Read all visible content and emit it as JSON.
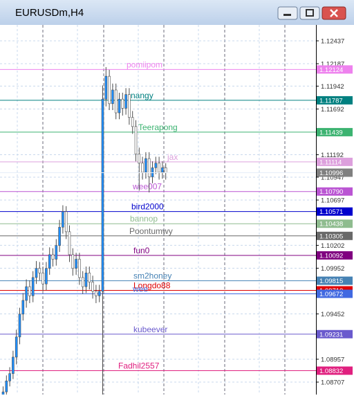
{
  "chart_data": {
    "type": "candlestick",
    "title": "EURUSDm,H4",
    "open": [
      1.0855,
      1.086,
      1.0872,
      1.088,
      1.0898,
      1.092,
      1.0945,
      1.096,
      1.0975,
      1.0965,
      1.0985,
      1.0995,
      1.099,
      1.0978,
      1.0995,
      1.101,
      1.1005,
      1.102,
      1.104,
      1.1057,
      1.1035,
      1.101,
      1.0995,
      1.1005,
      1.0985,
      1.0975,
      1.099,
      1.098,
      1.097,
      1.0965,
      1.097,
      1.118,
      1.1205,
      1.1175,
      1.119,
      1.1165,
      1.118,
      1.117,
      1.1185,
      1.116,
      1.115,
      1.112,
      1.111,
      1.11,
      1.1115,
      1.1095,
      1.1105,
      1.111,
      1.11,
      1.1105
    ],
    "high": [
      1.0866,
      1.0878,
      1.0887,
      1.0905,
      1.0928,
      1.0952,
      1.0968,
      1.0983,
      1.0982,
      1.0992,
      1.1003,
      1.1002,
      1.0997,
      1.1002,
      1.1018,
      1.1017,
      1.1027,
      1.1048,
      1.1064,
      1.1063,
      1.1042,
      1.1017,
      1.1012,
      1.1012,
      1.0992,
      1.0997,
      1.0997,
      1.0987,
      1.0977,
      1.0977,
      1.1195,
      1.1215,
      1.1212,
      1.1197,
      1.1197,
      1.1187,
      1.1187,
      1.1192,
      1.1192,
      1.1167,
      1.1157,
      1.1127,
      1.1117,
      1.1122,
      1.1122,
      1.1112,
      1.1117,
      1.1117,
      1.1112,
      1.111
    ],
    "low": [
      1.0849,
      1.0854,
      1.0866,
      1.0874,
      1.089,
      1.0912,
      1.0938,
      1.0952,
      1.0957,
      1.0958,
      1.0978,
      1.0982,
      1.097,
      1.0971,
      1.0988,
      1.0997,
      1.0998,
      1.1013,
      1.1033,
      1.1027,
      1.1002,
      1.0987,
      1.0988,
      1.0977,
      1.0967,
      1.0968,
      1.0972,
      1.0962,
      1.0957,
      1.0958,
      1.0857,
      1.1172,
      1.1168,
      1.1168,
      1.1158,
      1.1158,
      1.1162,
      1.1163,
      1.1152,
      1.1142,
      1.1112,
      1.108,
      1.1092,
      1.1093,
      1.1078,
      1.1088,
      1.1098,
      1.1092,
      1.1093,
      1.1092
    ],
    "close": [
      1.086,
      1.0872,
      1.088,
      1.0898,
      1.092,
      1.0945,
      1.096,
      1.0975,
      1.0965,
      1.0985,
      1.0995,
      1.099,
      1.0978,
      1.0995,
      1.101,
      1.1005,
      1.102,
      1.104,
      1.1057,
      1.1035,
      1.101,
      1.0995,
      1.1005,
      1.0985,
      1.0975,
      1.099,
      1.098,
      1.097,
      1.0965,
      1.097,
      1.118,
      1.1205,
      1.1175,
      1.119,
      1.1165,
      1.118,
      1.117,
      1.1185,
      1.116,
      1.115,
      1.112,
      1.111,
      1.11,
      1.1115,
      1.1095,
      1.1105,
      1.111,
      1.11,
      1.1105,
      1.10996
    ],
    "up_color": "#1e90ff",
    "down_color": "#ffffff",
    "wick_color": "#4d4d4d",
    "ylim": [
      1.08571,
      1.12611
    ],
    "yticks": [
      1.12437,
      1.12187,
      1.11942,
      1.11692,
      1.11192,
      1.10947,
      1.10697,
      1.10202,
      1.09952,
      1.09452,
      1.08957,
      1.08707
    ],
    "grid": true,
    "bid": {
      "value": 1.10996,
      "label": "1.10996",
      "color": "#808080"
    },
    "levels": [
      {
        "name": "pomiipom",
        "value": 1.12124,
        "label": "1.12124",
        "color": "#ee82ee"
      },
      {
        "name": "nangy",
        "value": 1.11787,
        "label": "1.11787",
        "color": "#008080"
      },
      {
        "name": "Teerapong",
        "value": 1.11439,
        "label": "1.11439",
        "color": "#3cb371"
      },
      {
        "name": "jax",
        "value": 1.11114,
        "label": "1.11114",
        "color": "#dda0dd"
      },
      {
        "name": "wee007",
        "value": 1.1079,
        "label": "1.10790",
        "color": "#ba55d3"
      },
      {
        "name": "bird2000",
        "value": 1.10571,
        "label": "1.10571",
        "color": "#0000cd"
      },
      {
        "name": "bannop",
        "value": 1.10438,
        "label": "1.10438",
        "color": "#8fbc8f"
      },
      {
        "name": "Poontumwy",
        "value": 1.10305,
        "label": "1.10305",
        "color": "#696969"
      },
      {
        "name": "fun0",
        "value": 1.10092,
        "label": "1.10092",
        "color": "#800080"
      },
      {
        "name": "sm2honey",
        "value": 1.09815,
        "label": "1.09815",
        "color": "#4682b4"
      },
      {
        "name": "Longdo88",
        "value": 1.0971,
        "label": "1.09710",
        "color": "#e00000"
      },
      {
        "name": "wee",
        "value": 1.09672,
        "label": "1.09672",
        "color": "#4169e1"
      },
      {
        "name": "kubeever",
        "value": 1.09231,
        "label": "1.09231",
        "color": "#6a5acd"
      },
      {
        "name": "Fadhil2557",
        "value": 1.08832,
        "label": "1.08832",
        "color": "#e0207f"
      }
    ]
  }
}
